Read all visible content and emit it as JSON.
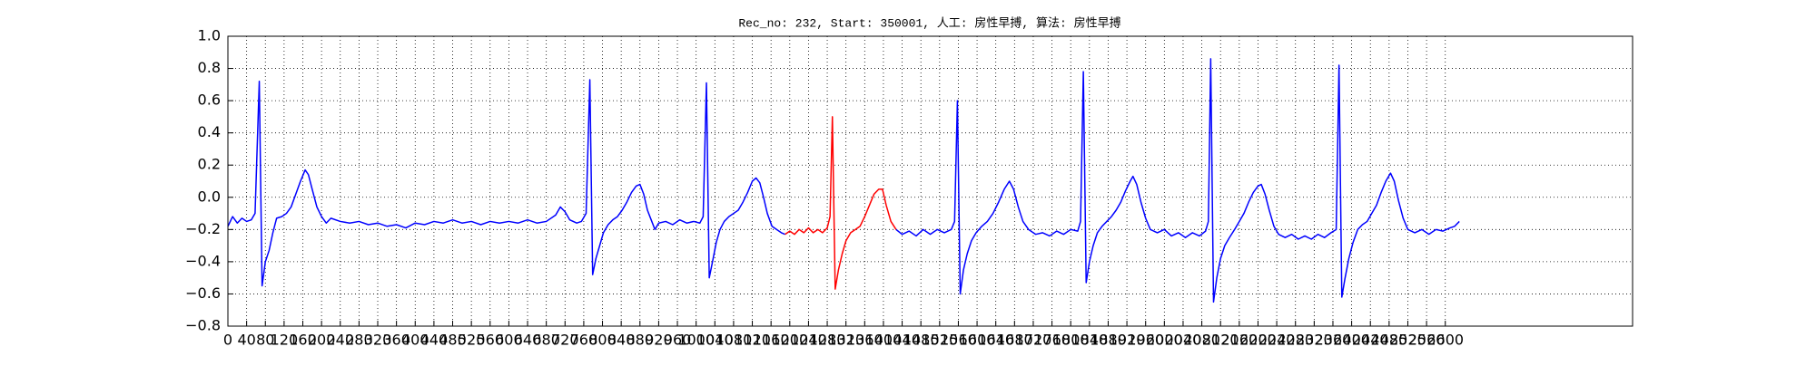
{
  "chart_data": {
    "type": "line",
    "title": "Rec_no: 232, Start: 350001, 人工: 房性早搏, 算法: 房性早搏",
    "xlim": [
      0,
      3000
    ],
    "ylim": [
      -0.8,
      1.0
    ],
    "xticks": [
      0,
      40,
      80,
      120,
      160,
      200,
      240,
      280,
      320,
      360,
      400,
      440,
      480,
      520,
      560,
      600,
      640,
      680,
      720,
      760,
      800,
      840,
      880,
      920,
      960,
      1000,
      1040,
      1080,
      1120,
      1160,
      1200,
      1240,
      1280,
      1320,
      1360,
      1400,
      1440,
      1480,
      1520,
      1560,
      1600,
      1640,
      1680,
      1720,
      1760,
      1800,
      1840,
      1880,
      1920,
      1960,
      2000,
      2040,
      2080,
      2120,
      2160,
      2200,
      2240,
      2280,
      2320,
      2360,
      2400,
      2440,
      2480,
      2520,
      2560,
      2600
    ],
    "yticks": [
      {
        "value": -0.8,
        "label": "−0.8"
      },
      {
        "value": -0.6,
        "label": "−0.6"
      },
      {
        "value": -0.4,
        "label": "−0.4"
      },
      {
        "value": -0.2,
        "label": "−0.2"
      },
      {
        "value": 0,
        "label": "0.0"
      },
      0.2,
      0.4,
      0.6,
      0.8,
      {
        "value": 1,
        "label": "1.0"
      }
    ],
    "grid": true,
    "series": [
      {
        "color": "#0000ff",
        "x": [
          0,
          10,
          20,
          30,
          40,
          50,
          58,
          67,
          73,
          80,
          88,
          96,
          104,
          115,
          125,
          135,
          145,
          155,
          165,
          172,
          180,
          190,
          200,
          210,
          220,
          240,
          260,
          280,
          300,
          320,
          340,
          360,
          380,
          400,
          420,
          440,
          460,
          480,
          500,
          520,
          540,
          560,
          580,
          600,
          620,
          640,
          660,
          680,
          700,
          710,
          720,
          730,
          745,
          755,
          765,
          773,
          779,
          786,
          794,
          802,
          812,
          822,
          832,
          842,
          852,
          862,
          872,
          880,
          888,
          896,
          904,
          912,
          920,
          935,
          950,
          965,
          980,
          995,
          1008,
          1015,
          1022,
          1028,
          1035,
          1043,
          1051,
          1060,
          1070,
          1080,
          1090,
          1100,
          1110,
          1120,
          1128,
          1136,
          1144,
          1152,
          1162,
          1172,
          1182,
          1190,
          1300,
          1427,
          1440,
          1455,
          1470,
          1485,
          1500,
          1515,
          1530,
          1545,
          1552,
          1558,
          1564,
          1571,
          1579,
          1588,
          1598,
          1610,
          1622,
          1634,
          1646,
          1658,
          1669,
          1678,
          1688,
          1698,
          1710,
          1725,
          1740,
          1755,
          1770,
          1785,
          1800,
          1815,
          1821,
          1827,
          1833,
          1840,
          1848,
          1857,
          1867,
          1877,
          1887,
          1897,
          1907,
          1917,
          1927,
          1933,
          1941,
          1950,
          1960,
          1970,
          1985,
          2000,
          2015,
          2030,
          2045,
          2060,
          2075,
          2088,
          2094,
          2099,
          2105,
          2112,
          2120,
          2129,
          2139,
          2150,
          2160,
          2170,
          2180,
          2190,
          2200,
          2207,
          2215,
          2224,
          2234,
          2244,
          2258,
          2272,
          2286,
          2300,
          2314,
          2328,
          2342,
          2356,
          2367,
          2373,
          2379,
          2386,
          2394,
          2403,
          2413,
          2423,
          2433,
          2443,
          2453,
          2463,
          2473,
          2483,
          2491,
          2500,
          2510,
          2520,
          2535,
          2550,
          2565,
          2580,
          2595,
          2610,
          2620,
          2630
        ],
        "values": [
          -0.18,
          -0.12,
          -0.16,
          -0.13,
          -0.15,
          -0.14,
          -0.1,
          0.72,
          -0.55,
          -0.4,
          -0.33,
          -0.22,
          -0.13,
          -0.12,
          -0.1,
          -0.06,
          0.02,
          0.1,
          0.17,
          0.14,
          0.05,
          -0.06,
          -0.12,
          -0.16,
          -0.13,
          -0.15,
          -0.16,
          -0.15,
          -0.17,
          -0.16,
          -0.18,
          -0.17,
          -0.19,
          -0.16,
          -0.17,
          -0.15,
          -0.16,
          -0.14,
          -0.16,
          -0.15,
          -0.17,
          -0.15,
          -0.16,
          -0.15,
          -0.16,
          -0.14,
          -0.16,
          -0.15,
          -0.11,
          -0.06,
          -0.09,
          -0.14,
          -0.16,
          -0.15,
          -0.1,
          0.73,
          -0.48,
          -0.38,
          -0.3,
          -0.22,
          -0.17,
          -0.14,
          -0.12,
          -0.08,
          -0.03,
          0.03,
          0.07,
          0.08,
          0.02,
          -0.08,
          -0.14,
          -0.2,
          -0.16,
          -0.15,
          -0.17,
          -0.14,
          -0.16,
          -0.15,
          -0.16,
          -0.12,
          0.71,
          -0.5,
          -0.4,
          -0.28,
          -0.2,
          -0.15,
          -0.12,
          -0.1,
          -0.08,
          -0.03,
          0.03,
          0.1,
          0.12,
          0.09,
          0.0,
          -0.1,
          -0.18,
          -0.2,
          -0.22,
          -0.23,
          null,
          -0.2,
          -0.23,
          -0.21,
          -0.24,
          -0.2,
          -0.23,
          -0.2,
          -0.22,
          -0.2,
          -0.15,
          0.6,
          -0.6,
          -0.45,
          -0.35,
          -0.27,
          -0.22,
          -0.18,
          -0.15,
          -0.1,
          -0.03,
          0.05,
          0.1,
          0.05,
          -0.06,
          -0.15,
          -0.2,
          -0.23,
          -0.22,
          -0.24,
          -0.21,
          -0.23,
          -0.2,
          -0.21,
          -0.15,
          0.78,
          -0.53,
          -0.4,
          -0.3,
          -0.22,
          -0.18,
          -0.15,
          -0.12,
          -0.08,
          -0.03,
          0.04,
          0.1,
          0.13,
          0.08,
          -0.03,
          -0.13,
          -0.2,
          -0.22,
          -0.2,
          -0.24,
          -0.22,
          -0.25,
          -0.22,
          -0.24,
          -0.21,
          -0.15,
          0.86,
          -0.65,
          -0.5,
          -0.38,
          -0.3,
          -0.25,
          -0.2,
          -0.15,
          -0.1,
          -0.03,
          0.03,
          0.07,
          0.08,
          0.02,
          -0.08,
          -0.18,
          -0.23,
          -0.25,
          -0.23,
          -0.26,
          -0.24,
          -0.26,
          -0.23,
          -0.25,
          -0.22,
          -0.2,
          0.82,
          -0.62,
          -0.5,
          -0.38,
          -0.28,
          -0.2,
          -0.17,
          -0.15,
          -0.1,
          -0.05,
          0.03,
          0.1,
          0.15,
          0.1,
          -0.02,
          -0.13,
          -0.2,
          -0.22,
          -0.2,
          -0.23,
          -0.2,
          -0.21,
          -0.19,
          -0.18,
          -0.15
        ]
      },
      {
        "color": "#ff0000",
        "x": [
          1190,
          1200,
          1210,
          1220,
          1230,
          1240,
          1250,
          1260,
          1270,
          1280,
          1286,
          1291,
          1297,
          1304,
          1312,
          1320,
          1330,
          1340,
          1350,
          1360,
          1370,
          1380,
          1390,
          1398,
          1406,
          1416,
          1427
        ],
        "values": [
          -0.23,
          -0.21,
          -0.23,
          -0.2,
          -0.22,
          -0.19,
          -0.22,
          -0.2,
          -0.22,
          -0.19,
          -0.12,
          0.5,
          -0.57,
          -0.45,
          -0.35,
          -0.27,
          -0.22,
          -0.2,
          -0.18,
          -0.12,
          -0.05,
          0.02,
          0.05,
          0.05,
          -0.05,
          -0.15,
          -0.2
        ]
      }
    ]
  }
}
